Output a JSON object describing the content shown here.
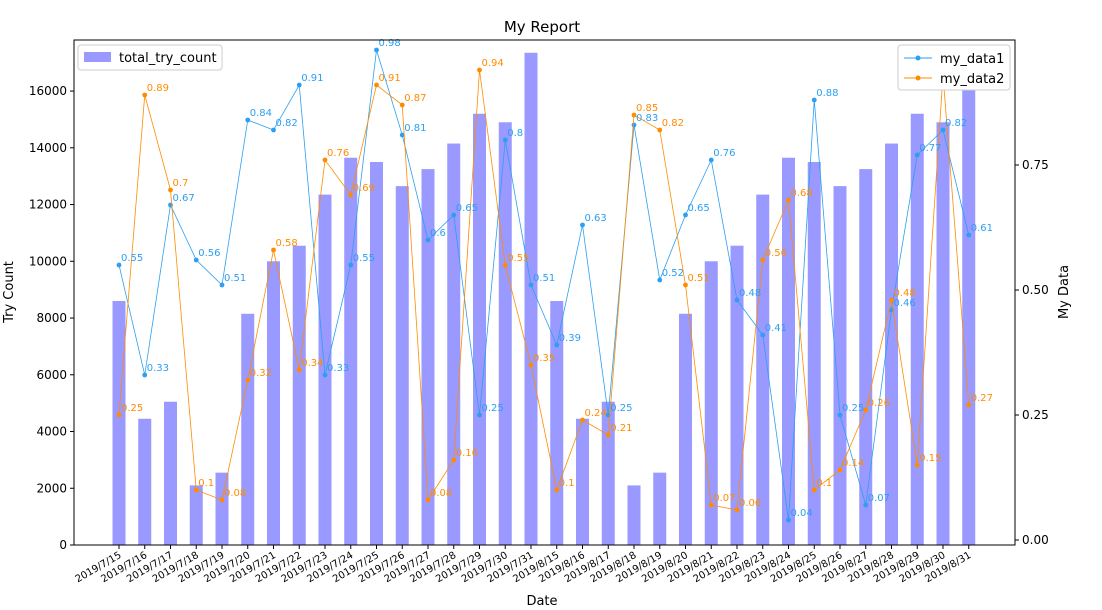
{
  "chart_data": {
    "type": "bar+line",
    "title": "My Report",
    "xlabel": "Date",
    "ylabel_left": "Try Count",
    "ylabel_right": "My Data",
    "categories": [
      "2019/7/15",
      "2019/7/16",
      "2019/7/17",
      "2019/7/18",
      "2019/7/19",
      "2019/7/20",
      "2019/7/21",
      "2019/7/22",
      "2019/7/23",
      "2019/7/24",
      "2019/7/25",
      "2019/7/26",
      "2019/7/27",
      "2019/7/28",
      "2019/7/29",
      "2019/7/30",
      "2019/7/31",
      "2019/8/15",
      "2019/8/16",
      "2019/8/17",
      "2019/8/18",
      "2019/8/19",
      "2019/8/20",
      "2019/8/21",
      "2019/8/22",
      "2019/8/23",
      "2019/8/24",
      "2019/8/25",
      "2019/8/26",
      "2019/8/27",
      "2019/8/28",
      "2019/8/29",
      "2019/8/30",
      "2019/8/31"
    ],
    "ylim_left": [
      0,
      17800
    ],
    "yticks_left": [
      "0",
      "2000",
      "4000",
      "6000",
      "8000",
      "10000",
      "12000",
      "14000",
      "16000"
    ],
    "ylim_right": [
      -0.01,
      1.0
    ],
    "yticks_right": [
      "0.00",
      "0.25",
      "0.50",
      "0.75"
    ],
    "bars": {
      "name": "total_try_count",
      "color": "#9999ff",
      "values": [
        8600,
        4450,
        5050,
        2100,
        2550,
        8150,
        10000,
        10550,
        12350,
        13650,
        13500,
        12650,
        13250,
        14150,
        15200,
        14900,
        17350,
        8600,
        4450,
        5050,
        2100,
        2550,
        8150,
        10000,
        10550,
        12350,
        13650,
        13500,
        12650,
        13250,
        14150,
        15200,
        14900,
        16500
      ]
    },
    "series": [
      {
        "name": "my_data1",
        "color": "#2b9ff2",
        "values": [
          0.55,
          0.33,
          0.67,
          0.56,
          0.51,
          0.84,
          0.82,
          0.91,
          0.33,
          0.55,
          0.98,
          0.81,
          0.6,
          0.65,
          0.25,
          0.8,
          0.51,
          0.39,
          0.63,
          0.25,
          0.83,
          0.52,
          0.65,
          0.76,
          0.48,
          0.41,
          0.04,
          0.88,
          0.25,
          0.07,
          0.46,
          0.77,
          0.82,
          0.61
        ],
        "labels": [
          "0.55",
          "0.33",
          "0.67",
          "0.56",
          "0.51",
          "0.84",
          "0.82",
          "0.91",
          "0.33",
          "0.55",
          "0.98",
          "0.81",
          "0.6",
          "0.65",
          "0.25",
          "0.8",
          "0.51",
          "0.39",
          "0.63",
          "0.25",
          "0.83",
          "0.52",
          "0.65",
          "0.76",
          "0.48",
          "0.41",
          "0.04",
          "0.88",
          "0.25",
          "0.07",
          "0.46",
          "0.77",
          "0.82",
          "0.61"
        ]
      },
      {
        "name": "my_data2",
        "color": "#ff8c00",
        "values": [
          0.25,
          0.89,
          0.7,
          0.1,
          0.08,
          0.32,
          0.58,
          0.34,
          0.76,
          0.69,
          0.91,
          0.87,
          0.08,
          0.16,
          0.94,
          0.55,
          0.35,
          0.1,
          0.24,
          0.21,
          0.85,
          0.82,
          0.51,
          0.07,
          0.06,
          0.56,
          0.68,
          0.1,
          0.14,
          0.26,
          0.48,
          0.15,
          0.93,
          0.27
        ],
        "labels": [
          "0.25",
          "0.89",
          "0.7",
          "0.1",
          "0.08",
          "0.32",
          "0.58",
          "0.34",
          "0.76",
          "0.69",
          "0.91",
          "0.87",
          "0.08",
          "0.16",
          "0.94",
          "0.55",
          "0.35",
          "0.1",
          "0.24",
          "0.21",
          "0.85",
          "0.82",
          "0.51",
          "0.07",
          "0.06",
          "0.56",
          "0.68",
          "0.1",
          "0.14",
          "0.26",
          "0.48",
          "0.15",
          "0.93",
          "0.27"
        ]
      }
    ],
    "legend_left_position": "upper left",
    "legend_right_position": "upper right",
    "grid": false
  }
}
